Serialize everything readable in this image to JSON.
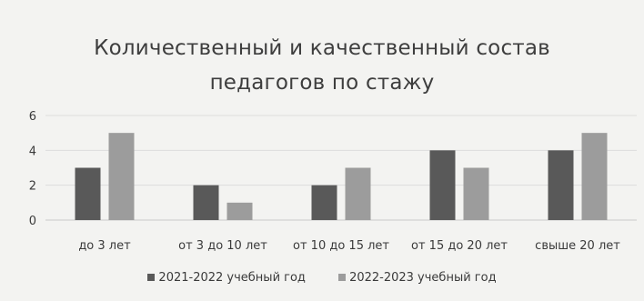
{
  "chart_data": {
    "type": "bar",
    "title_lines": [
      "Количественный и качественный состав",
      "педагогов по стажу"
    ],
    "categories": [
      "до 3 лет",
      "от 3 до 10 лет",
      "от 10 до 15 лет",
      "от 15 до 20 лет",
      "свыше 20 лет"
    ],
    "series": [
      {
        "name": "2021-2022 учебный год",
        "values": [
          3,
          2,
          2,
          4,
          4
        ],
        "color": "#595959"
      },
      {
        "name": "2022-2023 учебный год",
        "values": [
          5,
          1,
          3,
          3,
          5
        ],
        "color": "#9c9c9c"
      }
    ],
    "ylim": [
      0,
      6
    ],
    "yticks": [
      0,
      2,
      4,
      6
    ],
    "grid": true,
    "legend_position": "bottom"
  }
}
